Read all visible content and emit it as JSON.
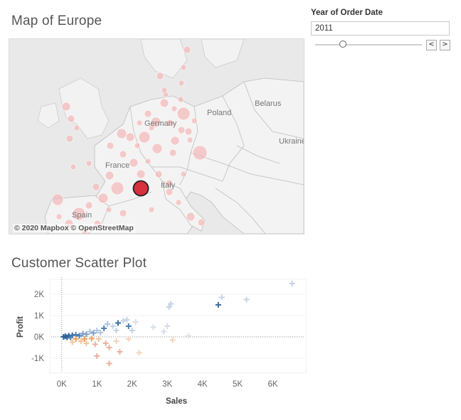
{
  "map": {
    "title": "Map of Europe",
    "attribution": "© 2020 Mapbox © OpenStreetMap",
    "country_labels": [
      "Poland",
      "Belarus",
      "Germany",
      "Ukraine",
      "France",
      "Italy",
      "Spain"
    ],
    "colors": {
      "land": "#f3f3f3",
      "water": "#e6e6e6",
      "border": "#bdbdbd",
      "bubble": "#f4b6b6",
      "highlight": "#d8303c"
    }
  },
  "filter": {
    "title": "Year of Order Date",
    "value": "2011",
    "prev_label": "<",
    "next_label": ">",
    "slider_fraction": 0.25
  },
  "scatter": {
    "title": "Customer Scatter Plot",
    "chart_data": {
      "type": "scatter",
      "title": "Customer Scatter Plot",
      "xlabel": "Sales",
      "ylabel": "Profit",
      "xlim": [
        -300,
        6900
      ],
      "ylim": [
        -1700,
        2800
      ],
      "xticks": [
        "0K",
        "1K",
        "2K",
        "3K",
        "4K",
        "5K",
        "6K"
      ],
      "yticks": [
        "2K",
        "1K",
        "0K",
        "-1K"
      ],
      "xtick_values": [
        0,
        1000,
        2000,
        3000,
        4000,
        5000,
        6000
      ],
      "ytick_values": [
        2000,
        1000,
        0,
        -1000
      ],
      "marker": "plus",
      "points": [
        {
          "x": 6550,
          "y": 2500,
          "c": "#c5d3e6"
        },
        {
          "x": 4550,
          "y": 1850,
          "c": "#c5d3e6"
        },
        {
          "x": 4450,
          "y": 1500,
          "c": "#3a6ea5"
        },
        {
          "x": 5250,
          "y": 1750,
          "c": "#c5d3e6"
        },
        {
          "x": 3100,
          "y": 1550,
          "c": "#c5d3e6"
        },
        {
          "x": 3050,
          "y": 1400,
          "c": "#c5d3e6"
        },
        {
          "x": 2600,
          "y": 450,
          "c": "#d7dee9"
        },
        {
          "x": 2900,
          "y": 250,
          "c": "#d7dee9"
        },
        {
          "x": 3000,
          "y": 500,
          "c": "#d7dee9"
        },
        {
          "x": 3150,
          "y": -150,
          "c": "#f5d5bc"
        },
        {
          "x": 3600,
          "y": 50,
          "c": "#e0e4ea"
        },
        {
          "x": 1600,
          "y": 650,
          "c": "#3a6ea5"
        },
        {
          "x": 1900,
          "y": 500,
          "c": "#4d7fb5"
        },
        {
          "x": 1200,
          "y": 400,
          "c": "#4d7fb5"
        },
        {
          "x": 1750,
          "y": 750,
          "c": "#c5d3e6"
        },
        {
          "x": 1850,
          "y": 800,
          "c": "#c5d3e6"
        },
        {
          "x": 1450,
          "y": 500,
          "c": "#c5d3e6"
        },
        {
          "x": 1550,
          "y": 300,
          "c": "#c5d3e6"
        },
        {
          "x": 1000,
          "y": 300,
          "c": "#b2c6df"
        },
        {
          "x": 800,
          "y": 250,
          "c": "#b2c6df"
        },
        {
          "x": 1300,
          "y": 600,
          "c": "#b2c6df"
        },
        {
          "x": 2000,
          "y": 300,
          "c": "#c5d3e6"
        },
        {
          "x": 2100,
          "y": 700,
          "c": "#d7dee9"
        },
        {
          "x": 600,
          "y": 150,
          "c": "#7fa0c8"
        },
        {
          "x": 400,
          "y": 100,
          "c": "#4d7fb5"
        },
        {
          "x": 300,
          "y": 80,
          "c": "#3a6ea5"
        },
        {
          "x": 200,
          "y": 50,
          "c": "#2f5f98"
        },
        {
          "x": 100,
          "y": 30,
          "c": "#2f5f98"
        },
        {
          "x": 50,
          "y": 0,
          "c": "#2f5f98"
        },
        {
          "x": 150,
          "y": -20,
          "c": "#2f5f98"
        },
        {
          "x": 250,
          "y": -30,
          "c": "#4d7fb5"
        },
        {
          "x": 500,
          "y": 50,
          "c": "#4d7fb5"
        },
        {
          "x": 700,
          "y": 120,
          "c": "#7fa0c8"
        },
        {
          "x": 900,
          "y": 180,
          "c": "#7fa0c8"
        },
        {
          "x": 1100,
          "y": 200,
          "c": "#b2c6df"
        },
        {
          "x": 400,
          "y": -100,
          "c": "#f0a25c"
        },
        {
          "x": 650,
          "y": -100,
          "c": "#f0a25c"
        },
        {
          "x": 850,
          "y": -80,
          "c": "#f0a25c"
        },
        {
          "x": 300,
          "y": -250,
          "c": "#f4c6a0"
        },
        {
          "x": 700,
          "y": -300,
          "c": "#f4c6a0"
        },
        {
          "x": 1000,
          "y": -900,
          "c": "#eab3a0"
        },
        {
          "x": 1350,
          "y": -1250,
          "c": "#eab3a0"
        },
        {
          "x": 1250,
          "y": -300,
          "c": "#eab3a0"
        },
        {
          "x": 1350,
          "y": -500,
          "c": "#eab3a0"
        },
        {
          "x": 1650,
          "y": -700,
          "c": "#eab3a0"
        },
        {
          "x": 2200,
          "y": -750,
          "c": "#f5d5bc"
        },
        {
          "x": 1900,
          "y": -100,
          "c": "#f5d5bc"
        },
        {
          "x": 1050,
          "y": -100,
          "c": "#f4c6a0"
        },
        {
          "x": 550,
          "y": -200,
          "c": "#f4c6a0"
        },
        {
          "x": 950,
          "y": -350,
          "c": "#eab3a0"
        },
        {
          "x": 1550,
          "y": -200,
          "c": "#f5d5bc"
        }
      ]
    }
  }
}
